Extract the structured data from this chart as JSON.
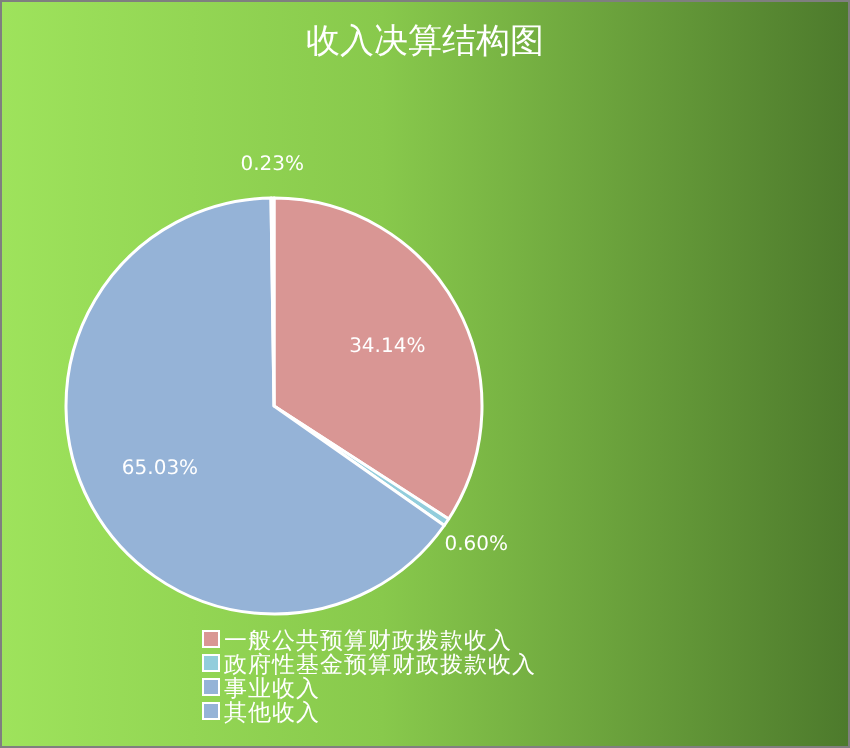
{
  "chart_data": {
    "type": "pie",
    "title": "收入决算结构图",
    "categories": [
      "一般公共预算财政拨款收入",
      "政府性基金预算财政拨款收入",
      "事业收入",
      "其他收入"
    ],
    "values": [
      34.14,
      0.6,
      65.03,
      0.23
    ],
    "colors": [
      "#d99694",
      "#92cddc",
      "#95b3d7",
      "#95b3d7"
    ],
    "value_labels": [
      "34.14%",
      "0.60%",
      "65.03%",
      "0.23%"
    ],
    "legend": "bottom"
  }
}
